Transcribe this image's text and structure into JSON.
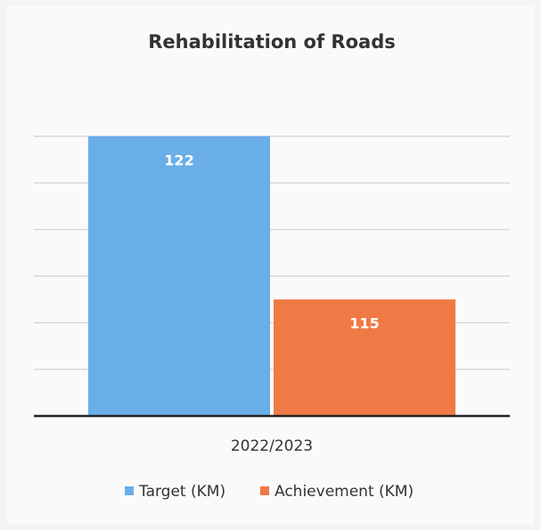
{
  "chart_data": {
    "type": "bar",
    "title": "Rehabilitation of Roads",
    "categories": [
      "2022/2023"
    ],
    "series": [
      {
        "name": "Target (KM)",
        "color": "#6aaee8",
        "values": [
          122
        ]
      },
      {
        "name": "Achievement (KM)",
        "color": "#ef7a45",
        "values": [
          115
        ]
      }
    ],
    "ylim": [
      110,
      122
    ],
    "yticks": [
      110,
      112,
      114,
      116,
      118,
      120,
      122
    ],
    "grid": true,
    "legend": "bottom"
  }
}
